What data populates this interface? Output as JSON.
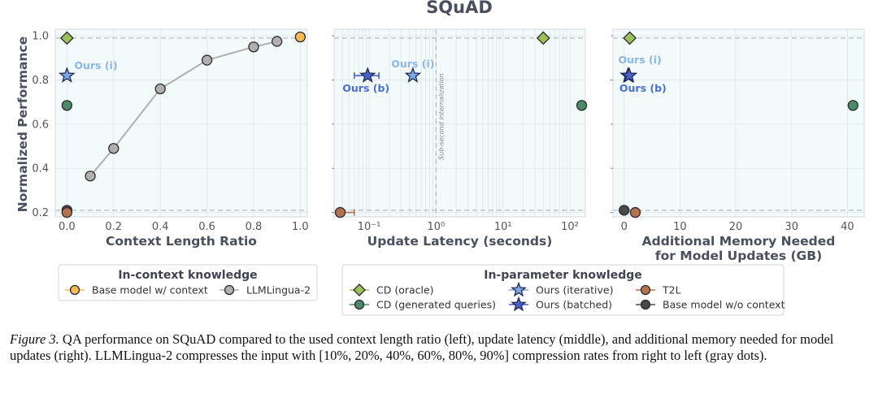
{
  "chart_data": {
    "title": "SQuAD",
    "ylabel": "Normalized Performance",
    "ylim": [
      0.18,
      1.03
    ],
    "yticks": [
      "0.2",
      "0.4",
      "0.6",
      "0.8",
      "1.0"
    ],
    "reference_lines": {
      "oracle": 0.99,
      "base_no_context": 0.21
    },
    "colors": {
      "base_with_context": "#f7b955",
      "llmlingua": "#b0b0b0",
      "cd_oracle": "#9bc15a",
      "cd_generated": "#4e8a69",
      "ours_iterative": "#7fa7e0",
      "ours_batched": "#4a62c8",
      "t2l": "#b5724f",
      "base_no_context": "#4a4a4a"
    },
    "panels": [
      {
        "id": "context",
        "type": "scatter",
        "xlabel": "Context Length Ratio",
        "xscale": "linear",
        "xlim": [
          -0.05,
          1.03
        ],
        "xticks": [
          "0.0",
          "0.2",
          "0.4",
          "0.6",
          "0.8",
          "1.0"
        ],
        "series": {
          "llmlingua": {
            "x": [
              0.1,
              0.2,
              0.4,
              0.6,
              0.8,
              0.9
            ],
            "y": [
              0.365,
              0.49,
              0.76,
              0.89,
              0.95,
              0.975
            ]
          },
          "base_with_context": {
            "x": [
              1.0
            ],
            "y": [
              0.995
            ]
          },
          "cd_oracle": {
            "x": [
              0.0
            ],
            "y": [
              0.99
            ]
          },
          "ours_iterative": {
            "x": [
              0.0
            ],
            "y": [
              0.82
            ]
          },
          "cd_generated": {
            "x": [
              0.0
            ],
            "y": [
              0.685
            ]
          },
          "base_no_context": {
            "x": [
              0.0
            ],
            "y": [
              0.21
            ]
          },
          "t2l": {
            "x": [
              0.0
            ],
            "y": [
              0.2
            ]
          }
        },
        "annotations": [
          {
            "text": "Ours (i)",
            "x": 0.0,
            "y": 0.82
          }
        ]
      },
      {
        "id": "latency",
        "type": "scatter",
        "xlabel": "Update Latency (seconds)",
        "xscale": "log",
        "xlim": [
          0.03,
          170
        ],
        "xticks": [
          "10⁻¹",
          "10⁰",
          "10¹",
          "10²"
        ],
        "vline": {
          "x": 1,
          "label": "Sub-second internalization"
        },
        "series": {
          "cd_oracle": {
            "x": [
              40
            ],
            "y": [
              0.99
            ]
          },
          "ours_iterative": {
            "x": [
              0.45
            ],
            "y": [
              0.82
            ]
          },
          "ours_batched": {
            "x": [
              0.095
            ],
            "y": [
              0.82
            ],
            "xerr": [
              0.06,
              0.14
            ]
          },
          "cd_generated": {
            "x": [
              150
            ],
            "y": [
              0.685
            ]
          },
          "t2l": {
            "x": [
              0.037
            ],
            "y": [
              0.2
            ],
            "xerr": [
              0.037,
              0.06
            ]
          }
        },
        "annotations": [
          {
            "text": "Ours (i)",
            "x": 0.45,
            "y": 0.82
          },
          {
            "text": "Ours (b)",
            "x": 0.095,
            "y": 0.82
          }
        ]
      },
      {
        "id": "memory",
        "type": "scatter",
        "xlabel": "Additional Memory Needed\nfor Model Updates (GB)",
        "xscale": "linear",
        "xlim": [
          -2,
          43
        ],
        "xticks": [
          "0",
          "10",
          "20",
          "30",
          "40"
        ],
        "series": {
          "cd_oracle": {
            "x": [
              1
            ],
            "y": [
              0.99
            ]
          },
          "ours_iterative": {
            "x": [
              0.7
            ],
            "y": [
              0.82
            ]
          },
          "ours_batched": {
            "x": [
              0.9
            ],
            "y": [
              0.82
            ]
          },
          "cd_generated": {
            "x": [
              41
            ],
            "y": [
              0.685
            ]
          },
          "base_no_context": {
            "x": [
              0
            ],
            "y": [
              0.21
            ]
          },
          "t2l": {
            "x": [
              2
            ],
            "y": [
              0.2
            ]
          }
        },
        "annotations": [
          {
            "text": "Ours (i)",
            "x": 0.7,
            "y": 0.82
          },
          {
            "text": "Ours (b)",
            "x": 0.9,
            "y": 0.82
          }
        ]
      }
    ],
    "legends": [
      {
        "title": "In-context knowledge",
        "items": [
          {
            "key": "base_with_context",
            "label": "Base model w/ context",
            "marker": "circle"
          },
          {
            "key": "llmlingua",
            "label": "LLMLingua-2",
            "marker": "circle"
          }
        ]
      },
      {
        "title": "In-parameter knowledge",
        "items": [
          {
            "key": "cd_oracle",
            "label": "CD (oracle)",
            "marker": "diamond"
          },
          {
            "key": "cd_generated",
            "label": "CD (generated queries)",
            "marker": "circle"
          },
          {
            "key": "ours_iterative",
            "label": "Ours (iterative)",
            "marker": "star"
          },
          {
            "key": "ours_batched",
            "label": "Ours (batched)",
            "marker": "star"
          },
          {
            "key": "t2l",
            "label": "T2L",
            "marker": "circle"
          },
          {
            "key": "base_no_context",
            "label": "Base model w/o context",
            "marker": "circle"
          }
        ]
      }
    ]
  },
  "caption": {
    "label": "Figure 3.",
    "text": " QA performance on SQuAD compared to the used context length ratio (left), update latency (middle), and additional memory needed for model updates (right). LLMLingua-2 compresses the input with [10%, 20%, 40%, 60%, 80%, 90%] compression rates from right to left (gray dots)."
  }
}
